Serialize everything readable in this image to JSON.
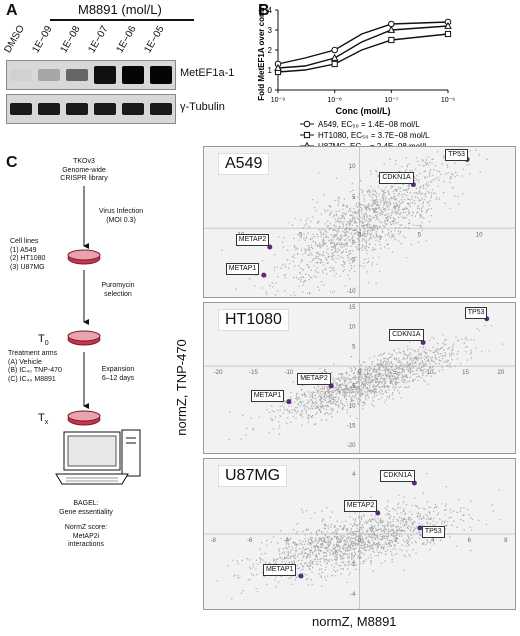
{
  "panels": {
    "a": "A",
    "b": "B",
    "c": "C"
  },
  "blot": {
    "drug_label": "M8891 (mol/L)",
    "lanes": [
      "DMSO",
      "1E−09",
      "1E−08",
      "1E−07",
      "1E−06",
      "1E−05"
    ],
    "band_intensity": [
      0.05,
      0.25,
      0.55,
      0.95,
      1.0,
      1.0
    ],
    "rows": [
      {
        "label": "MetEF1a-1"
      },
      {
        "label": "γ-Tubulin"
      }
    ]
  },
  "chart_data": {
    "type": "line",
    "title": "",
    "xlabel": "Conc (mol/L)",
    "ylabel": "Fold MetEF1A over control",
    "xscale": "log",
    "xlim": [
      1e-09,
      1e-06
    ],
    "ylim": [
      0,
      4
    ],
    "x_ticks": [
      "10⁻⁹",
      "10⁻⁸",
      "10⁻⁷",
      "10⁻⁶"
    ],
    "y_ticks": [
      "0",
      "1",
      "2",
      "3",
      "4"
    ],
    "x": [
      1e-09,
      3e-09,
      1e-08,
      3e-08,
      1e-07,
      1e-06
    ],
    "series": [
      {
        "name": "A549, EC₅₀ = 1.4E−08 mol/L",
        "marker": "circle",
        "values": [
          1.3,
          1.6,
          2.0,
          2.8,
          3.3,
          3.4
        ]
      },
      {
        "name": "HT1080, EC₅₀ = 3.7E−08 mol/L",
        "marker": "square",
        "values": [
          0.9,
          1.0,
          1.3,
          2.0,
          2.5,
          2.8
        ]
      },
      {
        "name": "U87MG, EC₅₀ = 2.4E−08 mol/L",
        "marker": "triangle",
        "values": [
          1.1,
          1.2,
          1.6,
          2.4,
          3.0,
          3.2
        ]
      }
    ],
    "legend_position": "bottom-right"
  },
  "flow": {
    "library": [
      "TKOv3",
      "Genome-wide",
      "CRISPR library"
    ],
    "infection": [
      "Virus Infection",
      "(MOI 0.3)"
    ],
    "cell_lines_title": "Cell lines",
    "cell_lines": [
      "(1) A549",
      "(2) HT1080",
      "(3) U87MG"
    ],
    "puromycin": [
      "Puromycin",
      "selection"
    ],
    "t0": "T",
    "t0_sub": "0",
    "treatment_title": "Treatment arms",
    "treatments": [
      "(A) Vehicle",
      "(B) IC₄₀ TNP-470",
      "(C) IC₄₀ M8891"
    ],
    "expansion": [
      "Expansion",
      "6–12 days"
    ],
    "tx": "T",
    "tx_sub": "x",
    "bagel": [
      "BAGEL:",
      "Gene essentiality"
    ],
    "normz": [
      "NormZ score:",
      "MetAP2i",
      "interactions"
    ]
  },
  "scatter": {
    "y_label": "normZ, TNP-470",
    "x_label": "normZ, M8891",
    "panels": [
      {
        "cell": "A549",
        "x_ticks": [
          "-10",
          "-5",
          "0",
          "5",
          "10"
        ],
        "y_ticks": [
          "10",
          "5",
          "0",
          "-5",
          "-10"
        ],
        "genes": [
          {
            "name": "TP53",
            "x": 9,
            "y": 11
          },
          {
            "name": "CDKN1A",
            "x": 4.5,
            "y": 7
          },
          {
            "name": "METAP2",
            "x": -7.5,
            "y": -3
          },
          {
            "name": "METAP1",
            "x": -8,
            "y": -7.5
          }
        ]
      },
      {
        "cell": "HT1080",
        "x_ticks": [
          "-20",
          "-15",
          "-10",
          "-5",
          "0",
          "5",
          "10",
          "15",
          "20"
        ],
        "y_ticks": [
          "15",
          "10",
          "5",
          "0",
          "-5",
          "-10",
          "-15",
          "-20"
        ],
        "genes": [
          {
            "name": "TP53",
            "x": 18,
            "y": 12
          },
          {
            "name": "CDKN1A",
            "x": 9,
            "y": 6
          },
          {
            "name": "METAP2",
            "x": -4,
            "y": -5
          },
          {
            "name": "METAP1",
            "x": -10,
            "y": -9
          }
        ]
      },
      {
        "cell": "U87MG",
        "x_ticks": [
          "-8",
          "-6",
          "-4",
          "-2",
          "0",
          "2",
          "4",
          "6",
          "8"
        ],
        "y_ticks": [
          "4",
          "2",
          "0",
          "-2",
          "-4"
        ],
        "genes": [
          {
            "name": "CDKN1A",
            "x": 3.0,
            "y": 3.4
          },
          {
            "name": "METAP2",
            "x": 1.0,
            "y": 1.4
          },
          {
            "name": "TP53",
            "x": 3.3,
            "y": 0.4
          },
          {
            "name": "METAP1",
            "x": -3.2,
            "y": -2.8
          }
        ]
      }
    ]
  }
}
